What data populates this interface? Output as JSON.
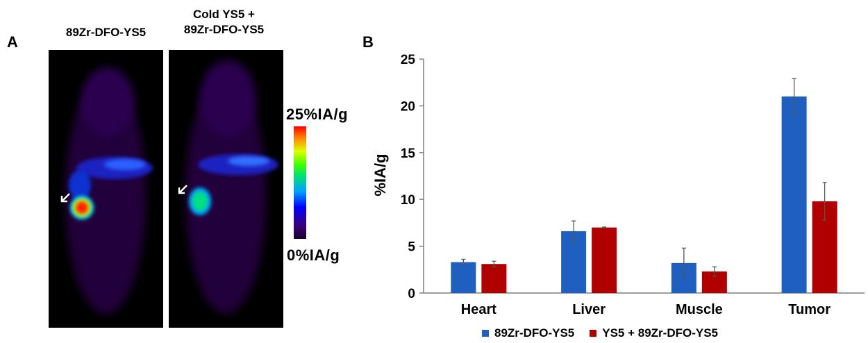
{
  "panel_a": {
    "letter": "A",
    "scan_left_title": "89Zr-DFO-YS5",
    "scan_right_title_line1": "Cold YS5  +",
    "scan_right_title_line2": "89Zr-DFO-YS5",
    "colorbar_max_label": "25%IA/g",
    "colorbar_min_label": "0%IA/g"
  },
  "panel_b": {
    "letter": "B"
  },
  "chart_data": {
    "type": "bar",
    "categories": [
      "Heart",
      "Liver",
      "Muscle",
      "Tumor"
    ],
    "series": [
      {
        "name": "89Zr-DFO-YS5",
        "color": "#1f5fbf",
        "values": [
          3.3,
          6.6,
          3.2,
          21.0
        ],
        "errors": [
          0.3,
          1.1,
          1.6,
          1.9
        ]
      },
      {
        "name": "YS5 + 89Zr-DFO-YS5",
        "color": "#b00000",
        "values": [
          3.1,
          7.0,
          2.3,
          9.8
        ],
        "errors": [
          0.3,
          0.05,
          0.5,
          2.0
        ]
      }
    ],
    "ylabel": "%IA/g",
    "ylim": [
      0,
      25
    ],
    "yticks": [
      0,
      5,
      10,
      15,
      20,
      25
    ],
    "legend_position": "bottom",
    "grid": false
  }
}
